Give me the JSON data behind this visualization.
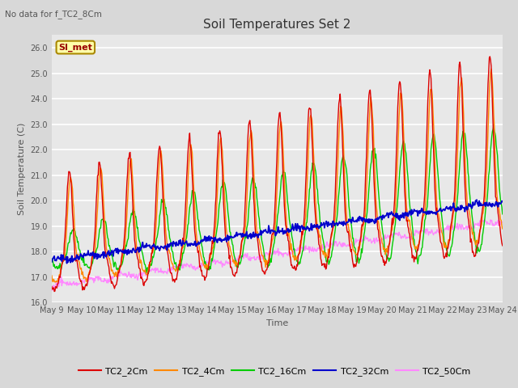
{
  "title": "Soil Temperatures Set 2",
  "subtitle": "No data for f_TC2_8Cm",
  "xlabel": "Time",
  "ylabel": "Soil Temperature (C)",
  "ylim": [
    16.0,
    26.5
  ],
  "yticks": [
    16.0,
    17.0,
    18.0,
    19.0,
    20.0,
    21.0,
    22.0,
    23.0,
    24.0,
    25.0,
    26.0
  ],
  "x_tick_labels": [
    "May 9",
    "May 10",
    "May 11",
    "May 12",
    "May 13",
    "May 14",
    "May 15",
    "May 16",
    "May 17",
    "May 18",
    "May 19",
    "May 20",
    "May 21",
    "May 22",
    "May 23",
    "May 24"
  ],
  "series": {
    "TC2_2Cm": {
      "color": "#dd0000",
      "lw": 1.0
    },
    "TC2_4Cm": {
      "color": "#ff8800",
      "lw": 1.0
    },
    "TC2_16Cm": {
      "color": "#00cc00",
      "lw": 1.0
    },
    "TC2_32Cm": {
      "color": "#0000cc",
      "lw": 1.3
    },
    "TC2_50Cm": {
      "color": "#ff88ff",
      "lw": 1.0
    }
  },
  "bg_color": "#e8e8e8",
  "grid_color": "#ffffff",
  "fig_bg": "#d8d8d8",
  "annotation_text": "SI_met",
  "annotation_bg": "#ffffaa",
  "annotation_border": "#aa8800",
  "title_fontsize": 11,
  "label_fontsize": 8,
  "tick_fontsize": 7
}
